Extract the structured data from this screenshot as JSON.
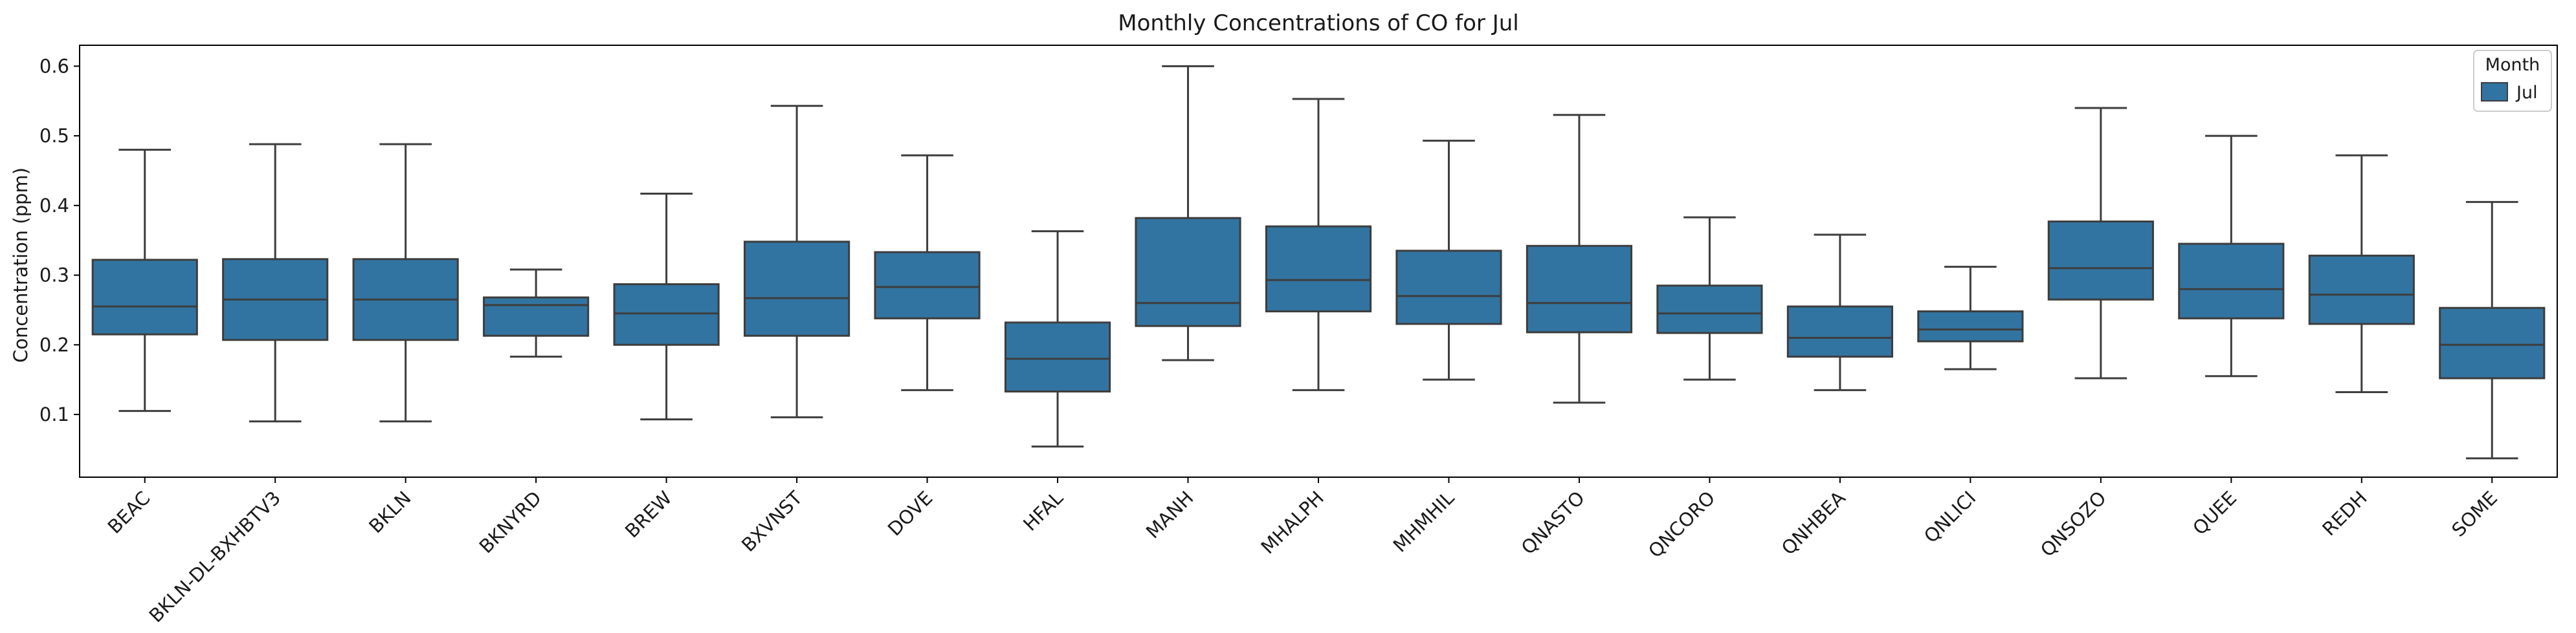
{
  "chart_data": {
    "type": "box",
    "title": "Monthly Concentrations of CO for Jul",
    "xlabel": "",
    "ylabel": "Concentration (ppm)",
    "ylim": [
      0.01,
      0.63
    ],
    "yticks": [
      0.1,
      0.2,
      0.3,
      0.4,
      0.5,
      0.6
    ],
    "ytick_labels": [
      "0.1",
      "0.2",
      "0.3",
      "0.4",
      "0.5",
      "0.6"
    ],
    "grid": false,
    "box_color": "#3274a1",
    "line_color": "#3d3d3d",
    "legend": {
      "title": "Month",
      "entries": [
        "Jul"
      ],
      "placement": "top-right"
    },
    "categories": [
      "BEAC",
      "BKLN-DL-BXHBTV3",
      "BKLN",
      "BKNYRD",
      "BREW",
      "BXVNST",
      "DOVE",
      "HFAL",
      "MANH",
      "MHALPH",
      "MHMHIL",
      "QNASTO",
      "QNCORO",
      "QNHBEA",
      "QNLICI",
      "QNSOZO",
      "QUEE",
      "REDH",
      "SOME"
    ],
    "series": [
      {
        "name": "Jul",
        "boxes": [
          {
            "whislo": 0.105,
            "q1": 0.215,
            "med": 0.255,
            "q3": 0.322,
            "whishi": 0.48
          },
          {
            "whislo": 0.09,
            "q1": 0.207,
            "med": 0.265,
            "q3": 0.323,
            "whishi": 0.488
          },
          {
            "whislo": 0.09,
            "q1": 0.207,
            "med": 0.265,
            "q3": 0.323,
            "whishi": 0.488
          },
          {
            "whislo": 0.183,
            "q1": 0.213,
            "med": 0.257,
            "q3": 0.268,
            "whishi": 0.308
          },
          {
            "whislo": 0.093,
            "q1": 0.2,
            "med": 0.245,
            "q3": 0.287,
            "whishi": 0.417
          },
          {
            "whislo": 0.096,
            "q1": 0.213,
            "med": 0.267,
            "q3": 0.348,
            "whishi": 0.543
          },
          {
            "whislo": 0.135,
            "q1": 0.238,
            "med": 0.283,
            "q3": 0.333,
            "whishi": 0.472
          },
          {
            "whislo": 0.054,
            "q1": 0.133,
            "med": 0.18,
            "q3": 0.232,
            "whishi": 0.363
          },
          {
            "whislo": 0.178,
            "q1": 0.227,
            "med": 0.26,
            "q3": 0.382,
            "whishi": 0.6
          },
          {
            "whislo": 0.135,
            "q1": 0.248,
            "med": 0.293,
            "q3": 0.37,
            "whishi": 0.553
          },
          {
            "whislo": 0.15,
            "q1": 0.23,
            "med": 0.27,
            "q3": 0.335,
            "whishi": 0.493
          },
          {
            "whislo": 0.117,
            "q1": 0.218,
            "med": 0.26,
            "q3": 0.342,
            "whishi": 0.53
          },
          {
            "whislo": 0.15,
            "q1": 0.217,
            "med": 0.245,
            "q3": 0.285,
            "whishi": 0.383
          },
          {
            "whislo": 0.135,
            "q1": 0.183,
            "med": 0.21,
            "q3": 0.255,
            "whishi": 0.358
          },
          {
            "whislo": 0.165,
            "q1": 0.205,
            "med": 0.222,
            "q3": 0.248,
            "whishi": 0.312
          },
          {
            "whislo": 0.152,
            "q1": 0.265,
            "med": 0.31,
            "q3": 0.377,
            "whishi": 0.54
          },
          {
            "whislo": 0.155,
            "q1": 0.238,
            "med": 0.28,
            "q3": 0.345,
            "whishi": 0.5
          },
          {
            "whislo": 0.132,
            "q1": 0.23,
            "med": 0.272,
            "q3": 0.328,
            "whishi": 0.472
          },
          {
            "whislo": 0.037,
            "q1": 0.152,
            "med": 0.2,
            "q3": 0.253,
            "whishi": 0.405
          }
        ]
      }
    ]
  }
}
